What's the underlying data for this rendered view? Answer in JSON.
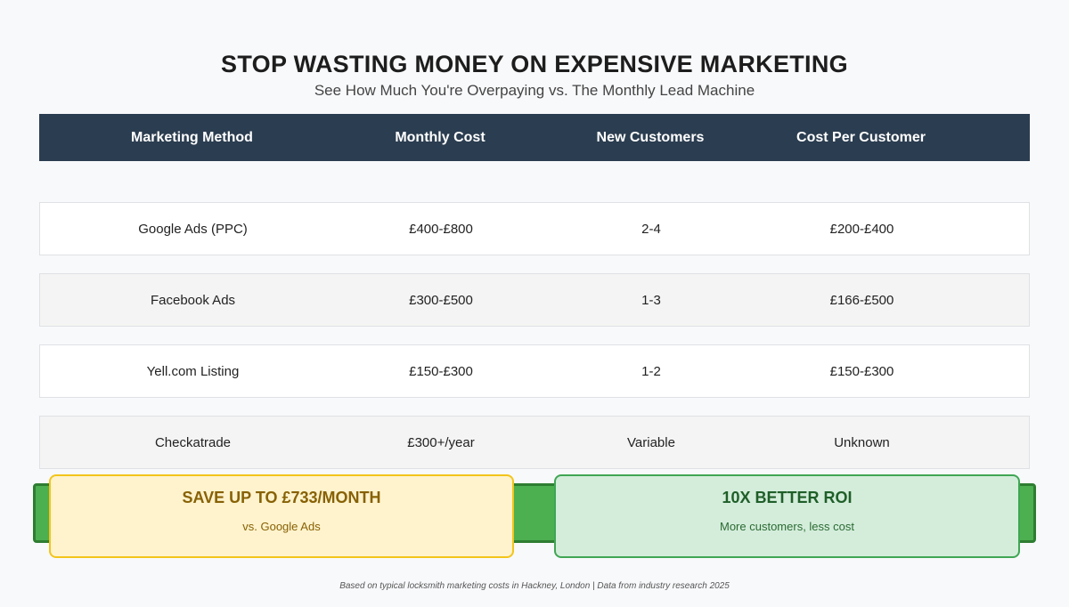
{
  "header": {
    "title": "STOP WASTING MONEY ON EXPENSIVE MARKETING",
    "subtitle": "See How Much You're Overpaying vs. The Monthly Lead Machine"
  },
  "chart_data": {
    "type": "table",
    "columns": [
      "Marketing Method",
      "Monthly Cost",
      "New Customers",
      "Cost Per Customer"
    ],
    "rows": [
      [
        "Google Ads (PPC)",
        "£400-£800",
        "2-4",
        "£200-£400"
      ],
      [
        "Facebook Ads",
        "£300-£500",
        "1-3",
        "£166-£500"
      ],
      [
        "Yell.com Listing",
        "£150-£300",
        "1-2",
        "£150-£300"
      ],
      [
        "Checkatrade",
        "£300+/year",
        "Variable",
        "Unknown"
      ]
    ]
  },
  "callouts": {
    "savings": {
      "headline": "SAVE UP TO £733/MONTH",
      "subtext": "vs. Google Ads"
    },
    "roi": {
      "headline": "10X BETTER ROI",
      "subtext": "More customers, less cost"
    }
  },
  "footnote": "Based on typical locksmith marketing costs in Hackney, London | Data from industry research 2025",
  "colors": {
    "header_bg": "#2b3d50",
    "accent_green": "#4caf50",
    "savings_bg": "#fff3cd",
    "roi_bg": "#d4eddb"
  }
}
